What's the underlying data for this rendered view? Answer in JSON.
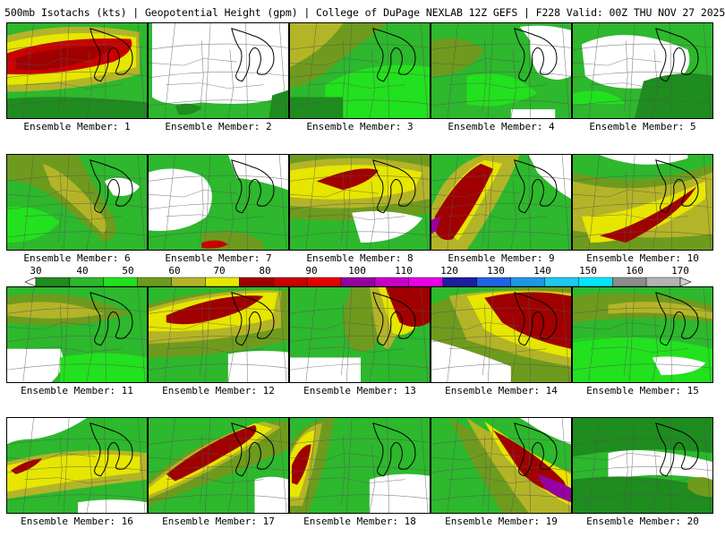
{
  "header": {
    "title": "500mb Isotachs (kts) | Geopotential Height (gpm) | College of DuPage NEXLAB   12Z GEFS | F228 Valid: 00Z THU NOV 27 2025"
  },
  "legend": {
    "ticks": [
      "30",
      "40",
      "50",
      "60",
      "70",
      "80",
      "90",
      "100",
      "110",
      "120",
      "130",
      "140",
      "150",
      "160",
      "170"
    ],
    "colors": [
      "#1e8c1e",
      "#2db82d",
      "#22e11e",
      "#6e9b1e",
      "#b4b428",
      "#e6e600",
      "#a00000",
      "#c80000",
      "#e60000",
      "#9600a0",
      "#c800c8",
      "#e600e6",
      "#1e1ea0",
      "#1e64e6",
      "#1e96e6",
      "#1ec8f0",
      "#00e6ff",
      "#8c8c8c",
      "#b4b4b4"
    ]
  },
  "colors": {
    "g1": "#1e8c1e",
    "g2": "#2db82d",
    "g3": "#22e11e",
    "olive": "#6e9b1e",
    "khaki": "#b4b428",
    "yellow": "#e6e600",
    "dred": "#a00000",
    "red": "#c80000",
    "purple": "#9600a0"
  },
  "members": [
    {
      "label": "Ensemble Member: 1"
    },
    {
      "label": "Ensemble Member: 2"
    },
    {
      "label": "Ensemble Member: 3"
    },
    {
      "label": "Ensemble Member: 4"
    },
    {
      "label": "Ensemble Member: 5"
    },
    {
      "label": "Ensemble Member: 6"
    },
    {
      "label": "Ensemble Member: 7"
    },
    {
      "label": "Ensemble Member: 8"
    },
    {
      "label": "Ensemble Member: 9"
    },
    {
      "label": "Ensemble Member: 10"
    },
    {
      "label": "Ensemble Member: 11"
    },
    {
      "label": "Ensemble Member: 12"
    },
    {
      "label": "Ensemble Member: 13"
    },
    {
      "label": "Ensemble Member: 14"
    },
    {
      "label": "Ensemble Member: 15"
    },
    {
      "label": "Ensemble Member: 16"
    },
    {
      "label": "Ensemble Member: 17"
    },
    {
      "label": "Ensemble Member: 18"
    },
    {
      "label": "Ensemble Member: 19"
    },
    {
      "label": "Ensemble Member: 20"
    }
  ]
}
